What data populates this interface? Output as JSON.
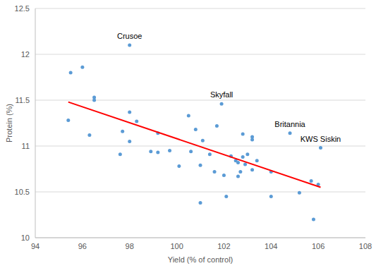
{
  "chart_data": {
    "type": "scatter",
    "x_label": "Yield (% of control)",
    "y_label": "Protein (%)",
    "xlim": [
      94,
      108
    ],
    "xticks": [
      94,
      96,
      98,
      100,
      102,
      104,
      106,
      108
    ],
    "ylim": [
      10,
      12.5
    ],
    "yticks": [
      10,
      10.5,
      11,
      11.5,
      12,
      12.5
    ],
    "grid": true,
    "series": [
      {
        "type": "scatter",
        "color": "#5b9bd5",
        "marker": "circle",
        "x": [
          95.4,
          95.5,
          96.0,
          96.3,
          96.5,
          96.5,
          97.6,
          97.7,
          98.0,
          98.0,
          98.0,
          98.3,
          98.9,
          99.2,
          99.2,
          99.7,
          100.1,
          100.5,
          100.6,
          100.8,
          101.0,
          101.0,
          101.1,
          101.4,
          101.6,
          101.7,
          101.9,
          102.0,
          102.1,
          102.3,
          102.5,
          102.6,
          102.6,
          102.7,
          102.8,
          102.8,
          102.9,
          103.0,
          103.2,
          103.2,
          103.2,
          103.4,
          104.0,
          104.0,
          104.8,
          105.2,
          105.7,
          105.8,
          106.0,
          106.1
        ],
        "values": [
          11.28,
          11.8,
          11.86,
          11.12,
          11.53,
          11.5,
          10.91,
          11.16,
          12.1,
          11.37,
          11.05,
          11.27,
          10.94,
          10.93,
          11.14,
          10.95,
          10.78,
          11.33,
          10.94,
          11.18,
          10.38,
          10.79,
          11.06,
          10.91,
          10.72,
          11.22,
          11.46,
          10.68,
          10.45,
          10.89,
          10.84,
          10.82,
          10.67,
          10.72,
          10.88,
          11.13,
          10.8,
          10.91,
          11.1,
          11.07,
          10.74,
          10.84,
          10.72,
          10.45,
          11.14,
          10.49,
          10.62,
          10.2,
          10.58,
          10.98
        ]
      },
      {
        "type": "line",
        "color": "#ff0000",
        "line_style": "solid",
        "x": [
          95.4,
          106.1
        ],
        "values": [
          11.48,
          10.55
        ]
      }
    ],
    "annotations": [
      {
        "text": "Crusoe",
        "x": 98.0,
        "y": 12.1
      },
      {
        "text": "Skyfall",
        "x": 101.9,
        "y": 11.46
      },
      {
        "text": "Britannia",
        "x": 104.8,
        "y": 11.14
      },
      {
        "text": "KWS Siskin",
        "x": 106.1,
        "y": 10.98
      }
    ]
  }
}
